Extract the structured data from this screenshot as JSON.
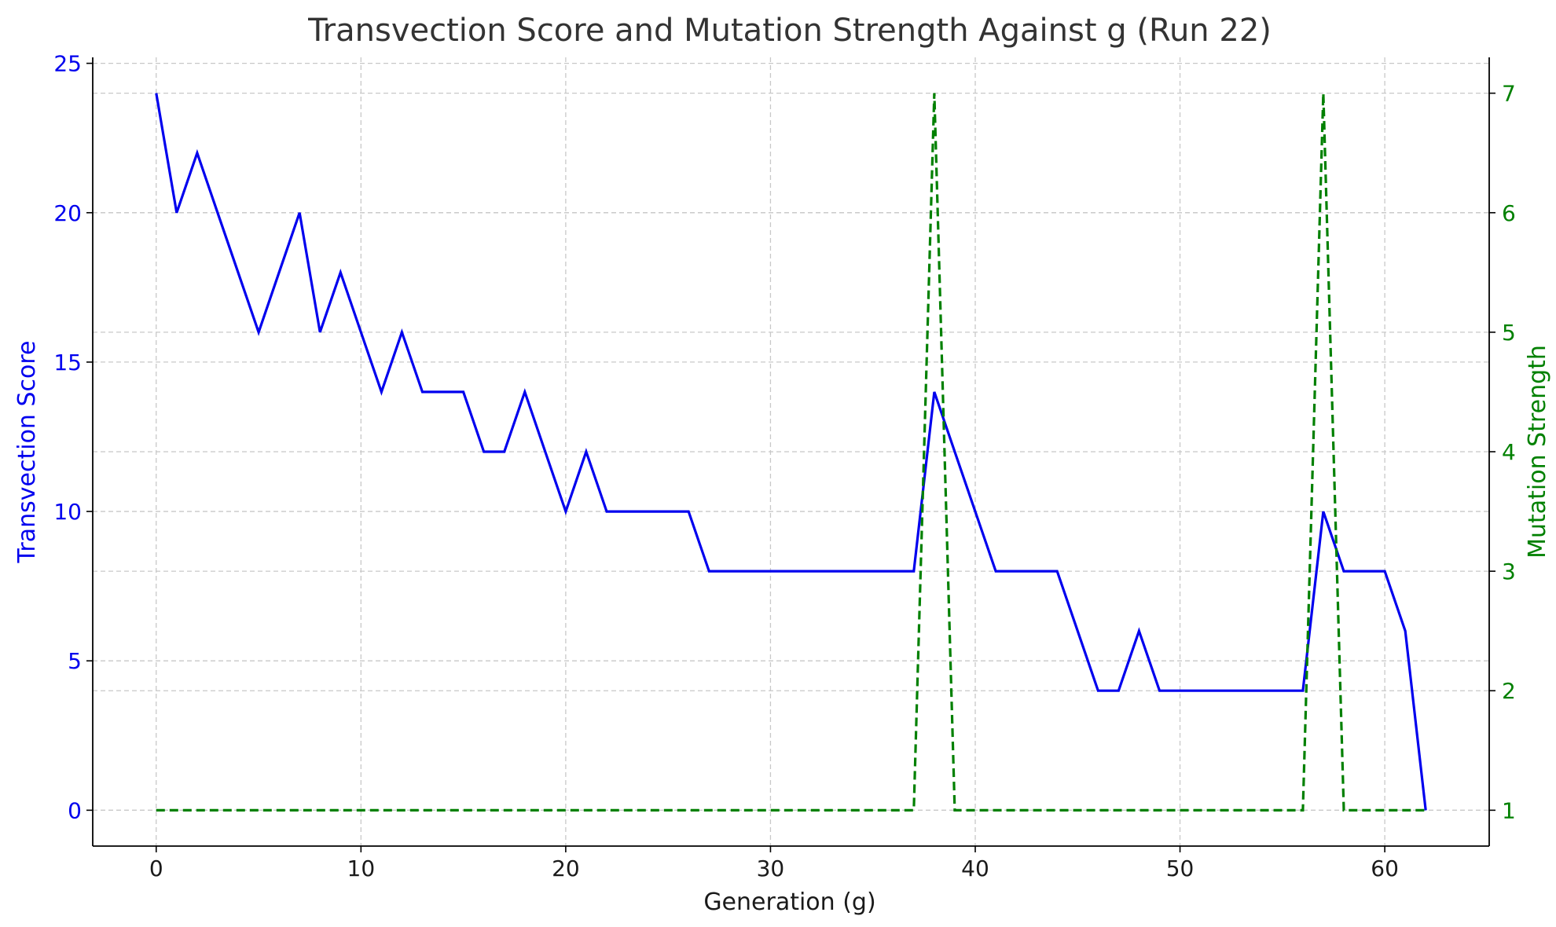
{
  "chart_data": {
    "type": "line",
    "title": "Transvection Score and Mutation Strength Against g (Run 22)",
    "xlabel": "Generation (g)",
    "ylabel": "Transvection Score",
    "y2label": "Mutation Strength",
    "xlim": [
      -3.1,
      65.1
    ],
    "ylim": [
      -1.2,
      25.2
    ],
    "y2lim": [
      0.7,
      7.3
    ],
    "xticks": [
      0,
      10,
      20,
      30,
      40,
      50,
      60
    ],
    "yticks": [
      0,
      5,
      10,
      15,
      20,
      25
    ],
    "y2ticks": [
      1,
      2,
      3,
      4,
      5,
      6,
      7
    ],
    "grid": true,
    "legend": "none",
    "colors": {
      "score": "#0000ee",
      "mutation": "#008000",
      "title": "#333333"
    },
    "x": [
      0,
      1,
      2,
      3,
      4,
      5,
      6,
      7,
      8,
      9,
      10,
      11,
      12,
      13,
      14,
      15,
      16,
      17,
      18,
      19,
      20,
      21,
      22,
      23,
      24,
      25,
      26,
      27,
      28,
      29,
      30,
      31,
      32,
      33,
      34,
      35,
      36,
      37,
      38,
      39,
      40,
      41,
      42,
      43,
      44,
      45,
      46,
      47,
      48,
      49,
      50,
      51,
      52,
      53,
      54,
      55,
      56,
      57,
      58,
      59,
      60,
      61,
      62
    ],
    "series": [
      {
        "axis": "left",
        "style": "solid",
        "values": [
          24,
          20,
          22,
          20,
          18,
          16,
          18,
          20,
          16,
          18,
          16,
          14,
          16,
          14,
          14,
          14,
          12,
          12,
          14,
          12,
          10,
          12,
          10,
          10,
          10,
          10,
          10,
          8,
          8,
          8,
          8,
          8,
          8,
          8,
          8,
          8,
          8,
          8,
          14,
          12,
          10,
          8,
          8,
          8,
          8,
          6,
          4,
          4,
          6,
          4,
          4,
          4,
          4,
          4,
          4,
          4,
          4,
          10,
          8,
          8,
          8,
          6,
          0
        ]
      },
      {
        "axis": "right",
        "style": "dashed",
        "values": [
          1,
          1,
          1,
          1,
          1,
          1,
          1,
          1,
          1,
          1,
          1,
          1,
          1,
          1,
          1,
          1,
          1,
          1,
          1,
          1,
          1,
          1,
          1,
          1,
          1,
          1,
          1,
          1,
          1,
          1,
          1,
          1,
          1,
          1,
          1,
          1,
          1,
          1,
          7,
          1,
          1,
          1,
          1,
          1,
          1,
          1,
          1,
          1,
          1,
          1,
          1,
          1,
          1,
          1,
          1,
          1,
          1,
          7,
          1,
          1,
          1,
          1,
          1
        ]
      }
    ]
  }
}
